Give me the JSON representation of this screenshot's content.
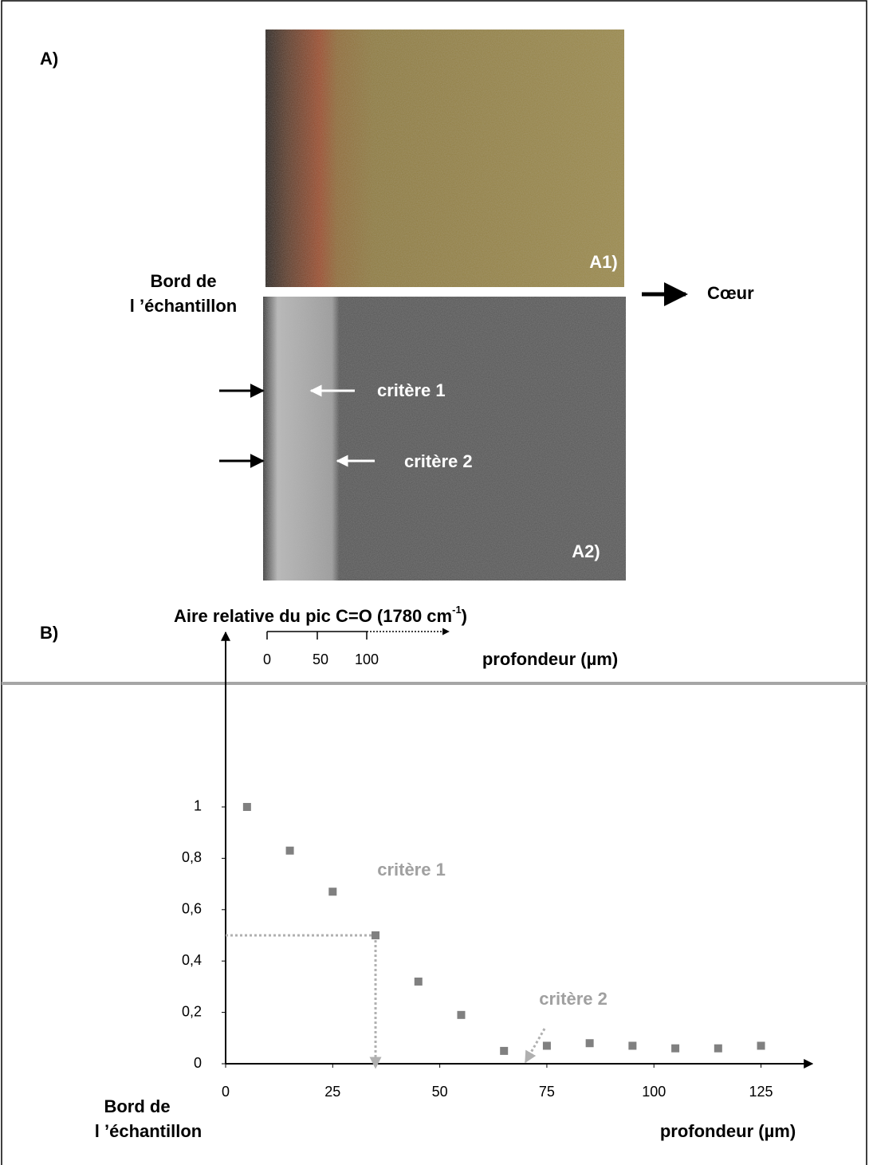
{
  "panel_a": {
    "label": "A)",
    "image_1_label": "A1)",
    "image_2_label": "A2)",
    "edge_label": [
      "Bord de",
      "l ’échantillon"
    ],
    "core_label": "Cœur",
    "criterion_1": "critère 1",
    "criterion_2": "critère 2",
    "scale_ticks": [
      0,
      50,
      100
    ],
    "scale_label": "profondeur (µm)"
  },
  "panel_b": {
    "label": "B)",
    "edge_label": [
      "Bord de",
      "l ’échantillon"
    ]
  },
  "chart_data": {
    "type": "scatter",
    "y_label": "Aire relative du pic C=O (1780 cm",
    "y_label_sup": "-1",
    "y_label_end": ")",
    "x_label": "profondeur (µm)",
    "x": [
      5,
      15,
      25,
      35,
      45,
      55,
      65,
      75,
      85,
      95,
      105,
      115,
      125
    ],
    "values": [
      1.0,
      0.83,
      0.67,
      0.5,
      0.32,
      0.19,
      0.05,
      0.07,
      0.08,
      0.07,
      0.06,
      0.06,
      0.07
    ],
    "color": "#808080",
    "xlim": [
      0,
      137
    ],
    "ylim": [
      0,
      1.68
    ],
    "xticks": [
      0,
      25,
      50,
      75,
      100,
      125
    ],
    "yticks": [
      0,
      {
        "value": 0.2,
        "label": "0,2"
      },
      {
        "value": 0.4,
        "label": "0,4"
      },
      {
        "value": 0.6,
        "label": "0,6"
      },
      {
        "value": 0.8,
        "label": "0,8"
      },
      1
    ],
    "annotations": [
      {
        "text": "critère 1",
        "x": 35,
        "y": 0.5
      },
      {
        "text": "critère 2",
        "x": 70
      }
    ]
  }
}
